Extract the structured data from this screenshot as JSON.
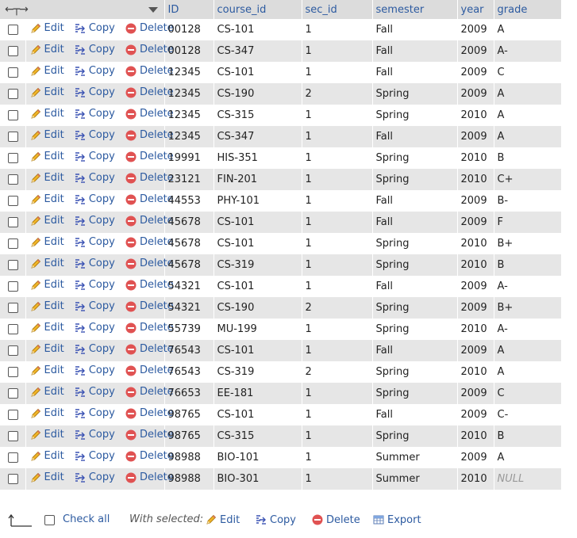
{
  "header": {
    "columns": [
      "ID",
      "course_id",
      "sec_id",
      "semester",
      "year",
      "grade"
    ]
  },
  "actions": {
    "edit": "Edit",
    "copy": "Copy",
    "delete": "Delete"
  },
  "rows": [
    {
      "ID": "00128",
      "course_id": "CS-101",
      "sec_id": "1",
      "semester": "Fall",
      "year": "2009",
      "grade": "A"
    },
    {
      "ID": "00128",
      "course_id": "CS-347",
      "sec_id": "1",
      "semester": "Fall",
      "year": "2009",
      "grade": "A-"
    },
    {
      "ID": "12345",
      "course_id": "CS-101",
      "sec_id": "1",
      "semester": "Fall",
      "year": "2009",
      "grade": "C"
    },
    {
      "ID": "12345",
      "course_id": "CS-190",
      "sec_id": "2",
      "semester": "Spring",
      "year": "2009",
      "grade": "A"
    },
    {
      "ID": "12345",
      "course_id": "CS-315",
      "sec_id": "1",
      "semester": "Spring",
      "year": "2010",
      "grade": "A"
    },
    {
      "ID": "12345",
      "course_id": "CS-347",
      "sec_id": "1",
      "semester": "Fall",
      "year": "2009",
      "grade": "A"
    },
    {
      "ID": "19991",
      "course_id": "HIS-351",
      "sec_id": "1",
      "semester": "Spring",
      "year": "2010",
      "grade": "B"
    },
    {
      "ID": "23121",
      "course_id": "FIN-201",
      "sec_id": "1",
      "semester": "Spring",
      "year": "2010",
      "grade": "C+"
    },
    {
      "ID": "44553",
      "course_id": "PHY-101",
      "sec_id": "1",
      "semester": "Fall",
      "year": "2009",
      "grade": "B-"
    },
    {
      "ID": "45678",
      "course_id": "CS-101",
      "sec_id": "1",
      "semester": "Fall",
      "year": "2009",
      "grade": "F"
    },
    {
      "ID": "45678",
      "course_id": "CS-101",
      "sec_id": "1",
      "semester": "Spring",
      "year": "2010",
      "grade": "B+"
    },
    {
      "ID": "45678",
      "course_id": "CS-319",
      "sec_id": "1",
      "semester": "Spring",
      "year": "2010",
      "grade": "B"
    },
    {
      "ID": "54321",
      "course_id": "CS-101",
      "sec_id": "1",
      "semester": "Fall",
      "year": "2009",
      "grade": "A-"
    },
    {
      "ID": "54321",
      "course_id": "CS-190",
      "sec_id": "2",
      "semester": "Spring",
      "year": "2009",
      "grade": "B+"
    },
    {
      "ID": "55739",
      "course_id": "MU-199",
      "sec_id": "1",
      "semester": "Spring",
      "year": "2010",
      "grade": "A-"
    },
    {
      "ID": "76543",
      "course_id": "CS-101",
      "sec_id": "1",
      "semester": "Fall",
      "year": "2009",
      "grade": "A"
    },
    {
      "ID": "76543",
      "course_id": "CS-319",
      "sec_id": "2",
      "semester": "Spring",
      "year": "2010",
      "grade": "A"
    },
    {
      "ID": "76653",
      "course_id": "EE-181",
      "sec_id": "1",
      "semester": "Spring",
      "year": "2009",
      "grade": "C"
    },
    {
      "ID": "98765",
      "course_id": "CS-101",
      "sec_id": "1",
      "semester": "Fall",
      "year": "2009",
      "grade": "C-"
    },
    {
      "ID": "98765",
      "course_id": "CS-315",
      "sec_id": "1",
      "semester": "Spring",
      "year": "2010",
      "grade": "B"
    },
    {
      "ID": "98988",
      "course_id": "BIO-101",
      "sec_id": "1",
      "semester": "Summer",
      "year": "2009",
      "grade": "A"
    },
    {
      "ID": "98988",
      "course_id": "BIO-301",
      "sec_id": "1",
      "semester": "Summer",
      "year": "2010",
      "grade": "NULL"
    }
  ],
  "footer": {
    "check_all": "Check all",
    "with_selected": "With selected:",
    "edit": "Edit",
    "copy": "Copy",
    "delete": "Delete",
    "export": "Export"
  }
}
